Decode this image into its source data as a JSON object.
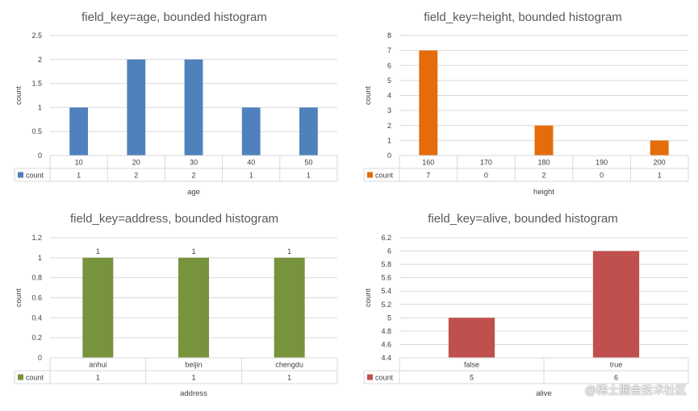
{
  "watermark": "@稀土掘金技术社区",
  "chart_data": [
    {
      "type": "bar",
      "title": "field_key=age, bounded histogram",
      "xlabel": "age",
      "ylabel": "count",
      "categories": [
        "10",
        "20",
        "30",
        "40",
        "50"
      ],
      "series": [
        {
          "name": "count",
          "values": [
            1,
            2,
            2,
            1,
            1
          ]
        }
      ],
      "ylim": [
        0,
        2.5
      ],
      "yticks": [
        "0",
        "0.5",
        "1",
        "1.5",
        "2",
        "2.5"
      ],
      "color": "#4f81bd",
      "data_labels": false,
      "data_table": true
    },
    {
      "type": "bar",
      "title": "field_key=height, bounded histogram",
      "xlabel": "height",
      "ylabel": "count",
      "categories": [
        "160",
        "170",
        "180",
        "190",
        "200"
      ],
      "series": [
        {
          "name": "count",
          "values": [
            7,
            0,
            2,
            0,
            1
          ]
        }
      ],
      "ylim": [
        0,
        8
      ],
      "yticks": [
        "0",
        "1",
        "2",
        "3",
        "4",
        "5",
        "6",
        "7",
        "8"
      ],
      "color": "#e46c0a",
      "data_labels": false,
      "data_table": true
    },
    {
      "type": "bar",
      "title": "field_key=address, bounded histogram",
      "xlabel": "address",
      "ylabel": "count",
      "categories": [
        "anhui",
        "beijin",
        "chengdu"
      ],
      "series": [
        {
          "name": "count",
          "values": [
            1,
            1,
            1
          ]
        }
      ],
      "ylim": [
        0,
        1.2
      ],
      "yticks": [
        "0",
        "0.2",
        "0.4",
        "0.6",
        "0.8",
        "1",
        "1.2"
      ],
      "color": "#77933c",
      "data_labels": true,
      "data_table": true
    },
    {
      "type": "bar",
      "title": "field_key=alive, bounded histogram",
      "xlabel": "alive",
      "ylabel": "count",
      "categories": [
        "false",
        "true"
      ],
      "series": [
        {
          "name": "count",
          "values": [
            5,
            6
          ]
        }
      ],
      "ylim": [
        4.4,
        6.2
      ],
      "yticks": [
        "4.4",
        "4.6",
        "4.8",
        "5",
        "5.2",
        "5.4",
        "5.6",
        "5.8",
        "6",
        "6.2"
      ],
      "color": "#c0504d",
      "data_labels": false,
      "data_table": true
    }
  ]
}
